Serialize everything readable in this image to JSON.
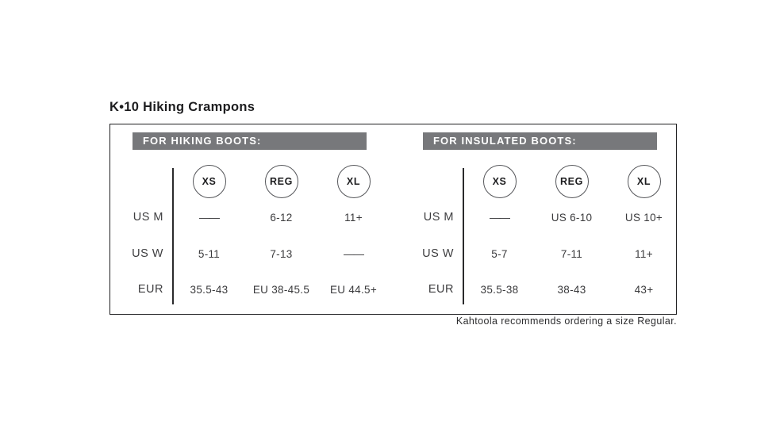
{
  "title": "K•10 Hiking Crampons",
  "footer_note": "Kahtoola recommends ordering a size Regular.",
  "colors": {
    "header_bar": "#77787b",
    "header_text": "#ffffff",
    "body_text": "#3a3a3c",
    "box_border": "#1f1f21"
  },
  "tables": [
    {
      "header": "FOR HIKING BOOTS:",
      "sizes": [
        "XS",
        "REG",
        "XL"
      ],
      "rows": [
        {
          "label": "US M",
          "cells": [
            "——",
            "6-12",
            "11+"
          ]
        },
        {
          "label": "US W",
          "cells": [
            "5-11",
            "7-13",
            "——"
          ]
        },
        {
          "label": "EUR",
          "cells": [
            "35.5-43",
            "EU 38-45.5",
            "EU 44.5+"
          ]
        }
      ]
    },
    {
      "header": "FOR INSULATED BOOTS:",
      "sizes": [
        "XS",
        "REG",
        "XL"
      ],
      "rows": [
        {
          "label": "US M",
          "cells": [
            "——",
            "US 6-10",
            "US 10+"
          ]
        },
        {
          "label": "US W",
          "cells": [
            "5-7",
            "7-11",
            "11+"
          ]
        },
        {
          "label": "EUR",
          "cells": [
            "35.5-38",
            "38-43",
            "43+"
          ]
        }
      ]
    }
  ],
  "chart_data": [
    {
      "type": "table",
      "title": "FOR HIKING BOOTS:",
      "columns": [
        "",
        "XS",
        "REG",
        "XL"
      ],
      "rows": [
        [
          "US M",
          "—",
          "6-12",
          "11+"
        ],
        [
          "US W",
          "5-11",
          "7-13",
          "—"
        ],
        [
          "EUR",
          "35.5-43",
          "EU 38-45.5",
          "EU 44.5+"
        ]
      ]
    },
    {
      "type": "table",
      "title": "FOR INSULATED BOOTS:",
      "columns": [
        "",
        "XS",
        "REG",
        "XL"
      ],
      "rows": [
        [
          "US M",
          "—",
          "US 6-10",
          "US 10+"
        ],
        [
          "US W",
          "5-7",
          "7-11",
          "11+"
        ],
        [
          "EUR",
          "35.5-38",
          "38-43",
          "43+"
        ]
      ]
    }
  ]
}
